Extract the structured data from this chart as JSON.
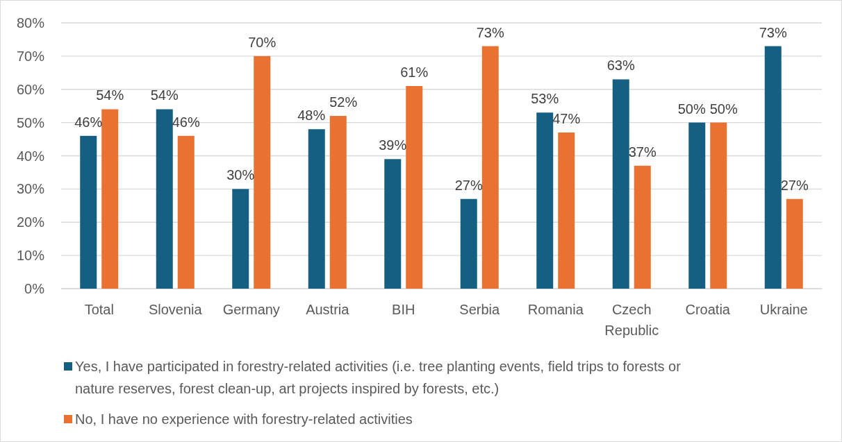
{
  "chart_data": {
    "type": "bar",
    "categories": [
      "Total",
      "Slovenia",
      "Germany",
      "Austria",
      "BIH",
      "Serbia",
      "Romania",
      "Czech Republic",
      "Croatia",
      "Ukraine"
    ],
    "series": [
      {
        "name": "Yes, I have participated in forestry-related activities (i.e. tree planting events, field trips to forests or nature reserves, forest clean-up, art projects inspired by forests, etc.)",
        "color": "#156082",
        "values": [
          46,
          54,
          30,
          48,
          39,
          27,
          53,
          63,
          50,
          73
        ],
        "value_labels": [
          "46%",
          "54%",
          "30%",
          "48%",
          "39%",
          "27%",
          "53%",
          "63%",
          "50%",
          "73%"
        ]
      },
      {
        "name": "No, I have no experience with forestry-related activities",
        "color": "#e97132",
        "values": [
          54,
          46,
          70,
          52,
          61,
          73,
          47,
          37,
          50,
          27
        ],
        "value_labels": [
          "54%",
          "46%",
          "70%",
          "52%",
          "61%",
          "73%",
          "47%",
          "37%",
          "50%",
          "27%"
        ]
      }
    ],
    "ylim": [
      0,
      80
    ],
    "yticks": [
      {
        "value": 0,
        "label": "0%"
      },
      {
        "value": 10,
        "label": "10%"
      },
      {
        "value": 20,
        "label": "20%"
      },
      {
        "value": 30,
        "label": "30%"
      },
      {
        "value": 40,
        "label": "40%"
      },
      {
        "value": 50,
        "label": "50%"
      },
      {
        "value": 60,
        "label": "60%"
      },
      {
        "value": 70,
        "label": "70%"
      },
      {
        "value": 80,
        "label": "80%"
      }
    ],
    "grid": "y",
    "legend": "bottom"
  }
}
